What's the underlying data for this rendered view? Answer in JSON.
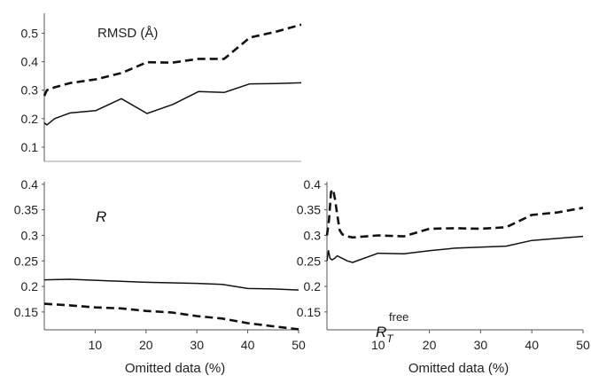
{
  "colors": {
    "line": "#111111",
    "axis": "#555555",
    "background": "#ffffff"
  },
  "chart_data": [
    {
      "type": "line",
      "title": "RMSD (Å)",
      "xlabel": "",
      "ylabel": "",
      "xlim": [
        0,
        50
      ],
      "ylim": [
        0.05,
        0.57
      ],
      "yticks": [
        0.1,
        0.2,
        0.3,
        0.4,
        0.5
      ],
      "ytick_labels": [
        "0.1",
        "0.2",
        "0.3",
        "0.4",
        "0.5"
      ],
      "xticks": [],
      "xtick_labels": [],
      "grid": false,
      "series": [
        {
          "style": "dashed",
          "x": [
            0,
            0.5,
            2,
            5,
            10,
            15,
            20,
            25,
            30,
            35,
            40,
            45,
            50
          ],
          "y": [
            0.28,
            0.3,
            0.31,
            0.325,
            0.338,
            0.36,
            0.398,
            0.397,
            0.41,
            0.41,
            0.485,
            0.505,
            0.53
          ]
        },
        {
          "style": "solid",
          "x": [
            0,
            0.5,
            2,
            5,
            10,
            15,
            20,
            25,
            30,
            35,
            40,
            45,
            50
          ],
          "y": [
            0.185,
            0.178,
            0.2,
            0.22,
            0.228,
            0.27,
            0.218,
            0.25,
            0.295,
            0.292,
            0.322,
            0.323,
            0.326
          ]
        }
      ]
    },
    {
      "type": "line",
      "title": "R",
      "xlabel": "Omitted data (%)",
      "ylabel": "",
      "xlim": [
        0,
        50
      ],
      "ylim": [
        0.115,
        0.405
      ],
      "yticks": [
        0.15,
        0.2,
        0.25,
        0.3,
        0.35,
        0.4
      ],
      "ytick_labels": [
        "0.15",
        "0.2",
        "0.25",
        "0.3",
        "0.35",
        "0.4"
      ],
      "xticks": [
        10,
        20,
        30,
        40,
        50
      ],
      "xtick_labels": [
        "10",
        "20",
        "30",
        "40",
        "50"
      ],
      "grid": false,
      "series": [
        {
          "style": "solid",
          "x": [
            0,
            5,
            10,
            15,
            20,
            25,
            30,
            35,
            40,
            45,
            50
          ],
          "y": [
            0.213,
            0.214,
            0.212,
            0.21,
            0.208,
            0.207,
            0.206,
            0.204,
            0.196,
            0.195,
            0.193
          ]
        },
        {
          "style": "dashed",
          "x": [
            0,
            5,
            10,
            15,
            20,
            25,
            30,
            35,
            40,
            45,
            50
          ],
          "y": [
            0.166,
            0.163,
            0.159,
            0.157,
            0.152,
            0.149,
            0.142,
            0.137,
            0.128,
            0.122,
            0.116
          ]
        }
      ]
    },
    {
      "type": "line",
      "title": "R",
      "title_sub": "T",
      "title_sup": "free",
      "xlabel": "Omitted data (%)",
      "ylabel": "",
      "xlim": [
        0,
        50
      ],
      "ylim": [
        0.115,
        0.405
      ],
      "yticks": [
        0.15,
        0.2,
        0.25,
        0.3,
        0.35,
        0.4
      ],
      "ytick_labels": [
        "0.15",
        "0.2",
        "0.25",
        "0.3",
        "0.35",
        "0.4"
      ],
      "xticks": [
        10,
        20,
        30,
        40,
        50
      ],
      "xtick_labels": [
        "10",
        "20",
        "30",
        "40",
        "50"
      ],
      "grid": false,
      "series": [
        {
          "style": "dashed",
          "x": [
            0,
            0.4,
            0.8,
            1.2,
            1.6,
            2,
            2.5,
            3,
            4,
            5,
            10,
            15,
            20,
            25,
            30,
            35,
            40,
            45,
            50
          ],
          "y": [
            0.3,
            0.33,
            0.385,
            0.39,
            0.37,
            0.34,
            0.31,
            0.302,
            0.298,
            0.296,
            0.3,
            0.298,
            0.313,
            0.314,
            0.313,
            0.316,
            0.34,
            0.345,
            0.354
          ]
        },
        {
          "style": "solid",
          "x": [
            0,
            0.3,
            0.6,
            1,
            1.5,
            2,
            3,
            4,
            5,
            10,
            15,
            20,
            25,
            30,
            35,
            40,
            45,
            50
          ],
          "y": [
            0.25,
            0.27,
            0.255,
            0.252,
            0.255,
            0.26,
            0.255,
            0.25,
            0.247,
            0.265,
            0.264,
            0.27,
            0.275,
            0.277,
            0.279,
            0.29,
            0.294,
            0.298
          ]
        }
      ]
    }
  ]
}
